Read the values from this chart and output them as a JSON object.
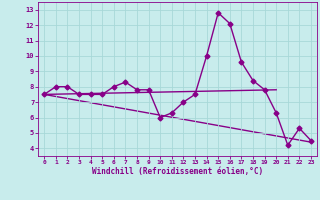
{
  "title": "",
  "xlabel": "Windchill (Refroidissement éolien,°C)",
  "xlim": [
    -0.5,
    23.5
  ],
  "ylim": [
    3.5,
    13.5
  ],
  "yticks": [
    4,
    5,
    6,
    7,
    8,
    9,
    10,
    11,
    12,
    13
  ],
  "xticks": [
    0,
    1,
    2,
    3,
    4,
    5,
    6,
    7,
    8,
    9,
    10,
    11,
    12,
    13,
    14,
    15,
    16,
    17,
    18,
    19,
    20,
    21,
    22,
    23
  ],
  "background_color": "#c8ecec",
  "grid_color": "#a8d8d8",
  "line_color": "#880088",
  "curve1_x": [
    0,
    1,
    2,
    3,
    4,
    5,
    6,
    7,
    8,
    9,
    10,
    11,
    12,
    13,
    14,
    15,
    16,
    17,
    18,
    19,
    20,
    21,
    22,
    23
  ],
  "curve1_y": [
    7.5,
    8.0,
    8.0,
    7.5,
    7.5,
    7.5,
    8.0,
    8.3,
    7.8,
    7.8,
    6.0,
    6.3,
    7.0,
    7.5,
    10.0,
    12.8,
    12.1,
    9.6,
    8.4,
    7.8,
    6.3,
    4.2,
    5.3,
    4.5
  ],
  "curve2_x": [
    0,
    20
  ],
  "curve2_y": [
    7.5,
    7.8
  ],
  "curve3_x": [
    0,
    23
  ],
  "curve3_y": [
    7.5,
    4.4
  ],
  "marker": "D",
  "markersize": 2.5,
  "linewidth": 1.0
}
